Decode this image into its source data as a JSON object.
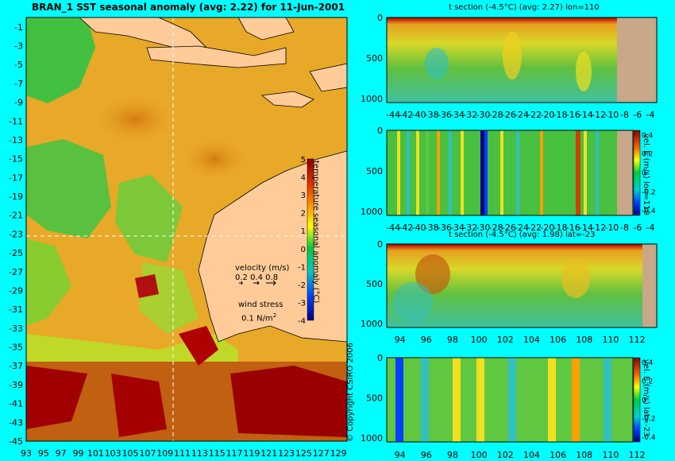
{
  "main_map": {
    "title": "BRAN_1 SST seasonal anomaly (avg: 2.22) for 11-Jun-2001",
    "y_ticks": [
      "-1",
      "-3",
      "-5",
      "-7",
      "-9",
      "-11",
      "-13",
      "-15",
      "-17",
      "-19",
      "-21",
      "-23",
      "-25",
      "-27",
      "-29",
      "-31",
      "-33",
      "-35",
      "-37",
      "-39",
      "-41",
      "-43",
      "-45"
    ],
    "x_ticks": [
      "93",
      "95",
      "97",
      "99",
      "101",
      "103",
      "105",
      "107",
      "109",
      "111",
      "113",
      "115",
      "117",
      "119",
      "121",
      "123",
      "125",
      "127",
      "129"
    ],
    "colorbar_label": "temperature seasonal anomaly (°C)",
    "colorbar_ticks": [
      "5",
      "4",
      "3",
      "2",
      "1",
      "0",
      "-1",
      "-2",
      "-3",
      "-4"
    ],
    "velocity_label": "velocity (m/s)",
    "velocity_scale": "0.2 0.4 0.8",
    "wind_label": "wind stress",
    "wind_scale": "0.1 N/m",
    "wind_scale_sup": "2",
    "copyright": "© Copyright CSIRO 2006"
  },
  "panels": [
    {
      "title": "t section (-4.5°C) (avg: 2.27) lon=110",
      "cb_label": ""
    },
    {
      "title": "",
      "cb_label": "vel. E (m/s) lon=110"
    },
    {
      "title": "t section (-4.5°C) (avg: 1.98) lat=-23",
      "cb_label": ""
    },
    {
      "title": "",
      "cb_label": "vel. E (m/s) lat=-23"
    }
  ],
  "lat_ticks": [
    "-44",
    "-42",
    "-40",
    "-38",
    "-36",
    "-34",
    "-32",
    "-30",
    "-28",
    "-26",
    "-24",
    "-22",
    "-20",
    "-18",
    "-16",
    "-14",
    "-12",
    "-10",
    "-8",
    "-6",
    "-4"
  ],
  "lon_ticks": [
    "94",
    "96",
    "98",
    "100",
    "102",
    "104",
    "106",
    "108",
    "110",
    "112"
  ],
  "depth_ticks": [
    "0",
    "500",
    "1000"
  ],
  "vel_ticks": [
    "0.4",
    "0.2",
    "0",
    "-0.2",
    "-0.4"
  ],
  "chart_data": [
    {
      "type": "heatmap",
      "title": "BRAN_1 SST seasonal anomaly (avg: 2.22) for 11-Jun-2001",
      "xlabel": "",
      "ylabel": "",
      "xlim": [
        93,
        130
      ],
      "ylim": [
        -45,
        0
      ],
      "colorbar": {
        "label": "temperature seasonal anomaly (°C)",
        "range": [
          -4,
          5
        ]
      },
      "average": 2.22,
      "date": "11-Jun-2001"
    },
    {
      "type": "heatmap",
      "title": "t section (-4.5°C) (avg: 2.27) lon=110",
      "xlim": [
        -45,
        -3
      ],
      "ylim": [
        1050,
        0
      ],
      "average": 2.27,
      "section": "lon=110"
    },
    {
      "type": "heatmap",
      "title": "",
      "colorbar": {
        "label": "vel. E (m/s) lon=110",
        "range": [
          -0.4,
          0.4
        ]
      }
    },
    {
      "type": "heatmap",
      "title": "t section (-4.5°C) (avg: 1.98) lat=-23",
      "xlim": [
        93,
        113.5
      ],
      "ylim": [
        1050,
        0
      ],
      "average": 1.98,
      "section": "lat=-23"
    },
    {
      "type": "heatmap",
      "title": "",
      "colorbar": {
        "label": "vel. E (m/s) lat=-23",
        "range": [
          -0.4,
          0.4
        ]
      }
    }
  ]
}
